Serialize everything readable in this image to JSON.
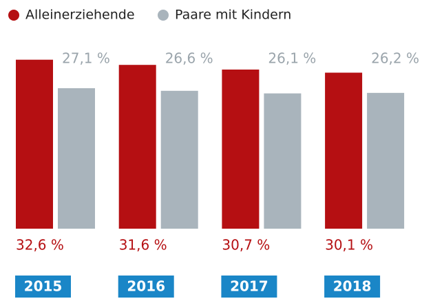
{
  "chart_data": {
    "type": "bar",
    "categories": [
      "2015",
      "2016",
      "2017",
      "2018"
    ],
    "series": [
      {
        "name": "Alleinerziehende",
        "color": "#b50f12",
        "values": [
          32.6,
          31.6,
          30.7,
          30.1
        ],
        "value_labels": [
          "32,6 %",
          "31,6 %",
          "30,7 %",
          "30,1 %"
        ]
      },
      {
        "name": "Paare mit Kindern",
        "color": "#a9b4bc",
        "values": [
          27.1,
          26.6,
          26.1,
          26.2
        ],
        "value_labels": [
          "27,1 %",
          "26,6 %",
          "26,1 %",
          "26,2 %"
        ]
      }
    ],
    "ylim": [
      0,
      40
    ]
  }
}
